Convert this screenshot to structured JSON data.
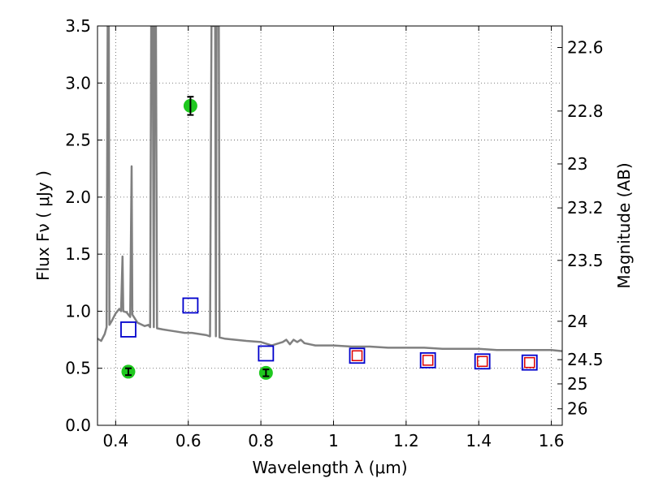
{
  "chart_data": {
    "type": "scatter",
    "xlabel": "Wavelength  λ (μm)",
    "ylabel": "Flux  Fν  ( μJy )",
    "ylabel_right": "Magnitude (AB)",
    "xlim": [
      0.35,
      1.63
    ],
    "ylim": [
      0.0,
      3.5
    ],
    "grid": true,
    "x_ticks": [
      {
        "value": 0.4,
        "label": "0.4"
      },
      {
        "value": 0.6,
        "label": "0.6"
      },
      {
        "value": 0.8,
        "label": "0.8"
      },
      {
        "value": 1.0,
        "label": "1"
      },
      {
        "value": 1.2,
        "label": "1.2"
      },
      {
        "value": 1.4,
        "label": "1.4"
      },
      {
        "value": 1.6,
        "label": "1.6"
      }
    ],
    "y_ticks": [
      {
        "value": 0.0,
        "label": "0.0"
      },
      {
        "value": 0.5,
        "label": "0.5"
      },
      {
        "value": 1.0,
        "label": "1.0"
      },
      {
        "value": 1.5,
        "label": "1.5"
      },
      {
        "value": 2.0,
        "label": "2.0"
      },
      {
        "value": 2.5,
        "label": "2.5"
      },
      {
        "value": 3.0,
        "label": "3.0"
      },
      {
        "value": 3.5,
        "label": "3.5"
      }
    ],
    "mag_ticks": [
      {
        "value": 22.6,
        "label": "22.6"
      },
      {
        "value": 22.8,
        "label": "22.8"
      },
      {
        "value": 23.0,
        "label": "23"
      },
      {
        "value": 23.2,
        "label": "23.2"
      },
      {
        "value": 23.5,
        "label": "23.5"
      },
      {
        "value": 24.0,
        "label": "24"
      },
      {
        "value": 24.5,
        "label": "24.5"
      },
      {
        "value": 25.0,
        "label": "25"
      },
      {
        "value": 26.0,
        "label": "26"
      }
    ],
    "colors": {
      "template": "#808080",
      "observed": "#1ec81e",
      "model_blue": "#0000cc",
      "model_red": "#dd0000",
      "errorbar": "#000000",
      "grid": "#555555"
    },
    "template_spectrum": {
      "style": "line",
      "points": [
        [
          0.35,
          0.76
        ],
        [
          0.36,
          0.74
        ],
        [
          0.37,
          0.8
        ],
        [
          0.375,
          0.86
        ],
        [
          0.378,
          3.5
        ],
        [
          0.381,
          3.5
        ],
        [
          0.383,
          0.88
        ],
        [
          0.39,
          0.92
        ],
        [
          0.4,
          0.98
        ],
        [
          0.41,
          1.02
        ],
        [
          0.415,
          1.0
        ],
        [
          0.419,
          1.48
        ],
        [
          0.421,
          1.0
        ],
        [
          0.43,
          0.99
        ],
        [
          0.44,
          0.95
        ],
        [
          0.444,
          2.27
        ],
        [
          0.446,
          0.97
        ],
        [
          0.46,
          0.9
        ],
        [
          0.48,
          0.87
        ],
        [
          0.49,
          0.88
        ],
        [
          0.495,
          0.86
        ],
        [
          0.498,
          3.5
        ],
        [
          0.502,
          3.5
        ],
        [
          0.505,
          0.86
        ],
        [
          0.507,
          3.5
        ],
        [
          0.511,
          3.5
        ],
        [
          0.514,
          0.85
        ],
        [
          0.53,
          0.84
        ],
        [
          0.55,
          0.83
        ],
        [
          0.57,
          0.82
        ],
        [
          0.59,
          0.81
        ],
        [
          0.61,
          0.81
        ],
        [
          0.63,
          0.8
        ],
        [
          0.65,
          0.79
        ],
        [
          0.66,
          0.78
        ],
        [
          0.664,
          3.5
        ],
        [
          0.674,
          3.5
        ],
        [
          0.676,
          0.78
        ],
        [
          0.678,
          3.5
        ],
        [
          0.684,
          3.5
        ],
        [
          0.686,
          0.77
        ],
        [
          0.7,
          0.76
        ],
        [
          0.73,
          0.75
        ],
        [
          0.76,
          0.74
        ],
        [
          0.8,
          0.73
        ],
        [
          0.83,
          0.7
        ],
        [
          0.85,
          0.72
        ],
        [
          0.86,
          0.73
        ],
        [
          0.87,
          0.75
        ],
        [
          0.88,
          0.71
        ],
        [
          0.89,
          0.75
        ],
        [
          0.9,
          0.73
        ],
        [
          0.91,
          0.75
        ],
        [
          0.92,
          0.72
        ],
        [
          0.95,
          0.7
        ],
        [
          1.0,
          0.7
        ],
        [
          1.05,
          0.69
        ],
        [
          1.1,
          0.69
        ],
        [
          1.15,
          0.68
        ],
        [
          1.2,
          0.68
        ],
        [
          1.25,
          0.68
        ],
        [
          1.3,
          0.67
        ],
        [
          1.35,
          0.67
        ],
        [
          1.4,
          0.67
        ],
        [
          1.45,
          0.66
        ],
        [
          1.5,
          0.66
        ],
        [
          1.55,
          0.66
        ],
        [
          1.6,
          0.66
        ],
        [
          1.63,
          0.65
        ]
      ]
    },
    "series": [
      {
        "marker": "circle",
        "points": [
          {
            "x": 0.435,
            "y": 0.47,
            "yerr": 0.03
          },
          {
            "x": 0.606,
            "y": 2.8,
            "yerr": 0.08
          },
          {
            "x": 0.814,
            "y": 0.46,
            "yerr": 0.03
          }
        ]
      },
      {
        "marker": "square-open",
        "points": [
          {
            "x": 0.435,
            "y": 0.84
          },
          {
            "x": 0.606,
            "y": 1.05
          },
          {
            "x": 0.814,
            "y": 0.63
          },
          {
            "x": 1.065,
            "y": 0.61
          },
          {
            "x": 1.26,
            "y": 0.57
          },
          {
            "x": 1.41,
            "y": 0.56
          },
          {
            "x": 1.54,
            "y": 0.55
          }
        ]
      },
      {
        "marker": "square-open-small",
        "points": [
          {
            "x": 1.065,
            "y": 0.61
          },
          {
            "x": 1.26,
            "y": 0.57
          },
          {
            "x": 1.41,
            "y": 0.56
          },
          {
            "x": 1.54,
            "y": 0.55
          }
        ]
      }
    ]
  }
}
